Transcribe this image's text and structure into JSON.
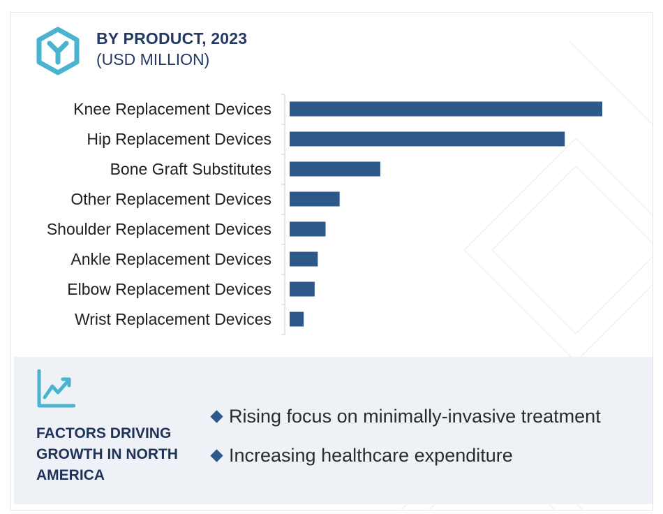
{
  "header": {
    "title": "BY PRODUCT, 2023",
    "subtitle": "(USD MILLION)",
    "icon": "hexagon-y-logo-icon"
  },
  "colors": {
    "bar": "#2e578a",
    "title": "#243a63",
    "icon": "#4ab3cf",
    "footer_bg": "#eef1f6"
  },
  "chart_data": {
    "type": "bar",
    "orientation": "horizontal",
    "categories": [
      "Knee Replacement Devices",
      "Hip Replacement Devices",
      "Bone Graft Substitutes",
      "Other Replacement Devices",
      "Shoulder Replacement Devices",
      "Ankle Replacement Devices",
      "Elbow Replacement Devices",
      "Wrist Replacement Devices"
    ],
    "values": [
      100,
      88,
      29,
      16,
      11.5,
      9,
      8,
      4.5
    ],
    "title": "BY PRODUCT, 2023",
    "subtitle": "(USD MILLION)",
    "xlim": [
      0,
      100
    ],
    "grid": false,
    "legend": "none"
  },
  "footer": {
    "icon": "line-chart-icon",
    "title": "FACTORS DRIVING GROWTH IN NORTH AMERICA",
    "bullets": [
      "Rising focus on minimally-invasive treatment",
      "Increasing healthcare expenditure"
    ]
  }
}
